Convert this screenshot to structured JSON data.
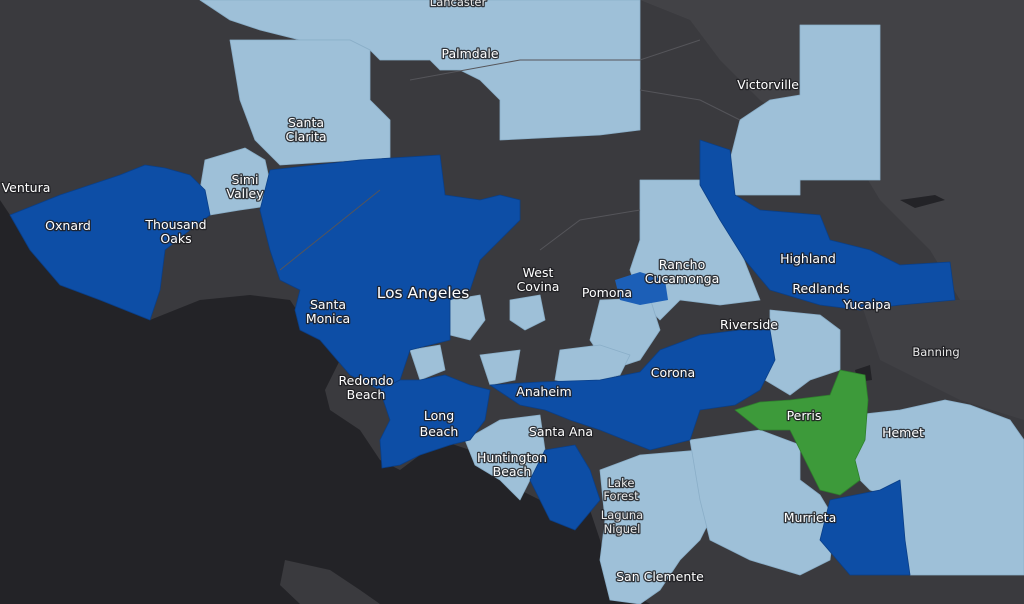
{
  "map": {
    "colors": {
      "ocean": "#232327",
      "land": "#3a3a3e",
      "land_alt": "#47474b",
      "tier_light": "#9ec0d8",
      "tier_dark": "#0d4ea6",
      "tier_mid": "#1c5fb7",
      "tier_green": "#3d9a3a"
    },
    "labels": {
      "lancaster": "Lancaster",
      "palmdale": "Palmdale",
      "victorville": "Victorville",
      "santa_clarita": [
        "Santa",
        "Clarita"
      ],
      "ventura": "Ventura",
      "simi_valley": [
        "Simi",
        "Valley"
      ],
      "oxnard": "Oxnard",
      "thousand_oaks": [
        "Thousand",
        "Oaks"
      ],
      "los_angeles": "Los Angeles",
      "west_covina": [
        "West",
        "Covina"
      ],
      "pomona": "Pomona",
      "rancho_cucamonga": [
        "Rancho",
        "Cucamonga"
      ],
      "highland": "Highland",
      "redlands": "Redlands",
      "yucaipa": "Yucaipa",
      "santa_monica": [
        "Santa",
        "Monica"
      ],
      "riverside": "Riverside",
      "banning": "Banning",
      "redondo_beach": [
        "Redondo",
        "Beach"
      ],
      "corona": "Corona",
      "anaheim": "Anaheim",
      "perris": "Perris",
      "hemet": "Hemet",
      "long_beach": [
        "Long",
        "Beach"
      ],
      "santa_ana": "Santa Ana",
      "huntington_beach": [
        "Huntington",
        "Beach"
      ],
      "lake_forest": [
        "Lake",
        "Forest"
      ],
      "laguna_niguel": [
        "Laguna",
        "Niguel"
      ],
      "murrieta": "Murrieta",
      "san_clemente": "San Clemente"
    }
  }
}
